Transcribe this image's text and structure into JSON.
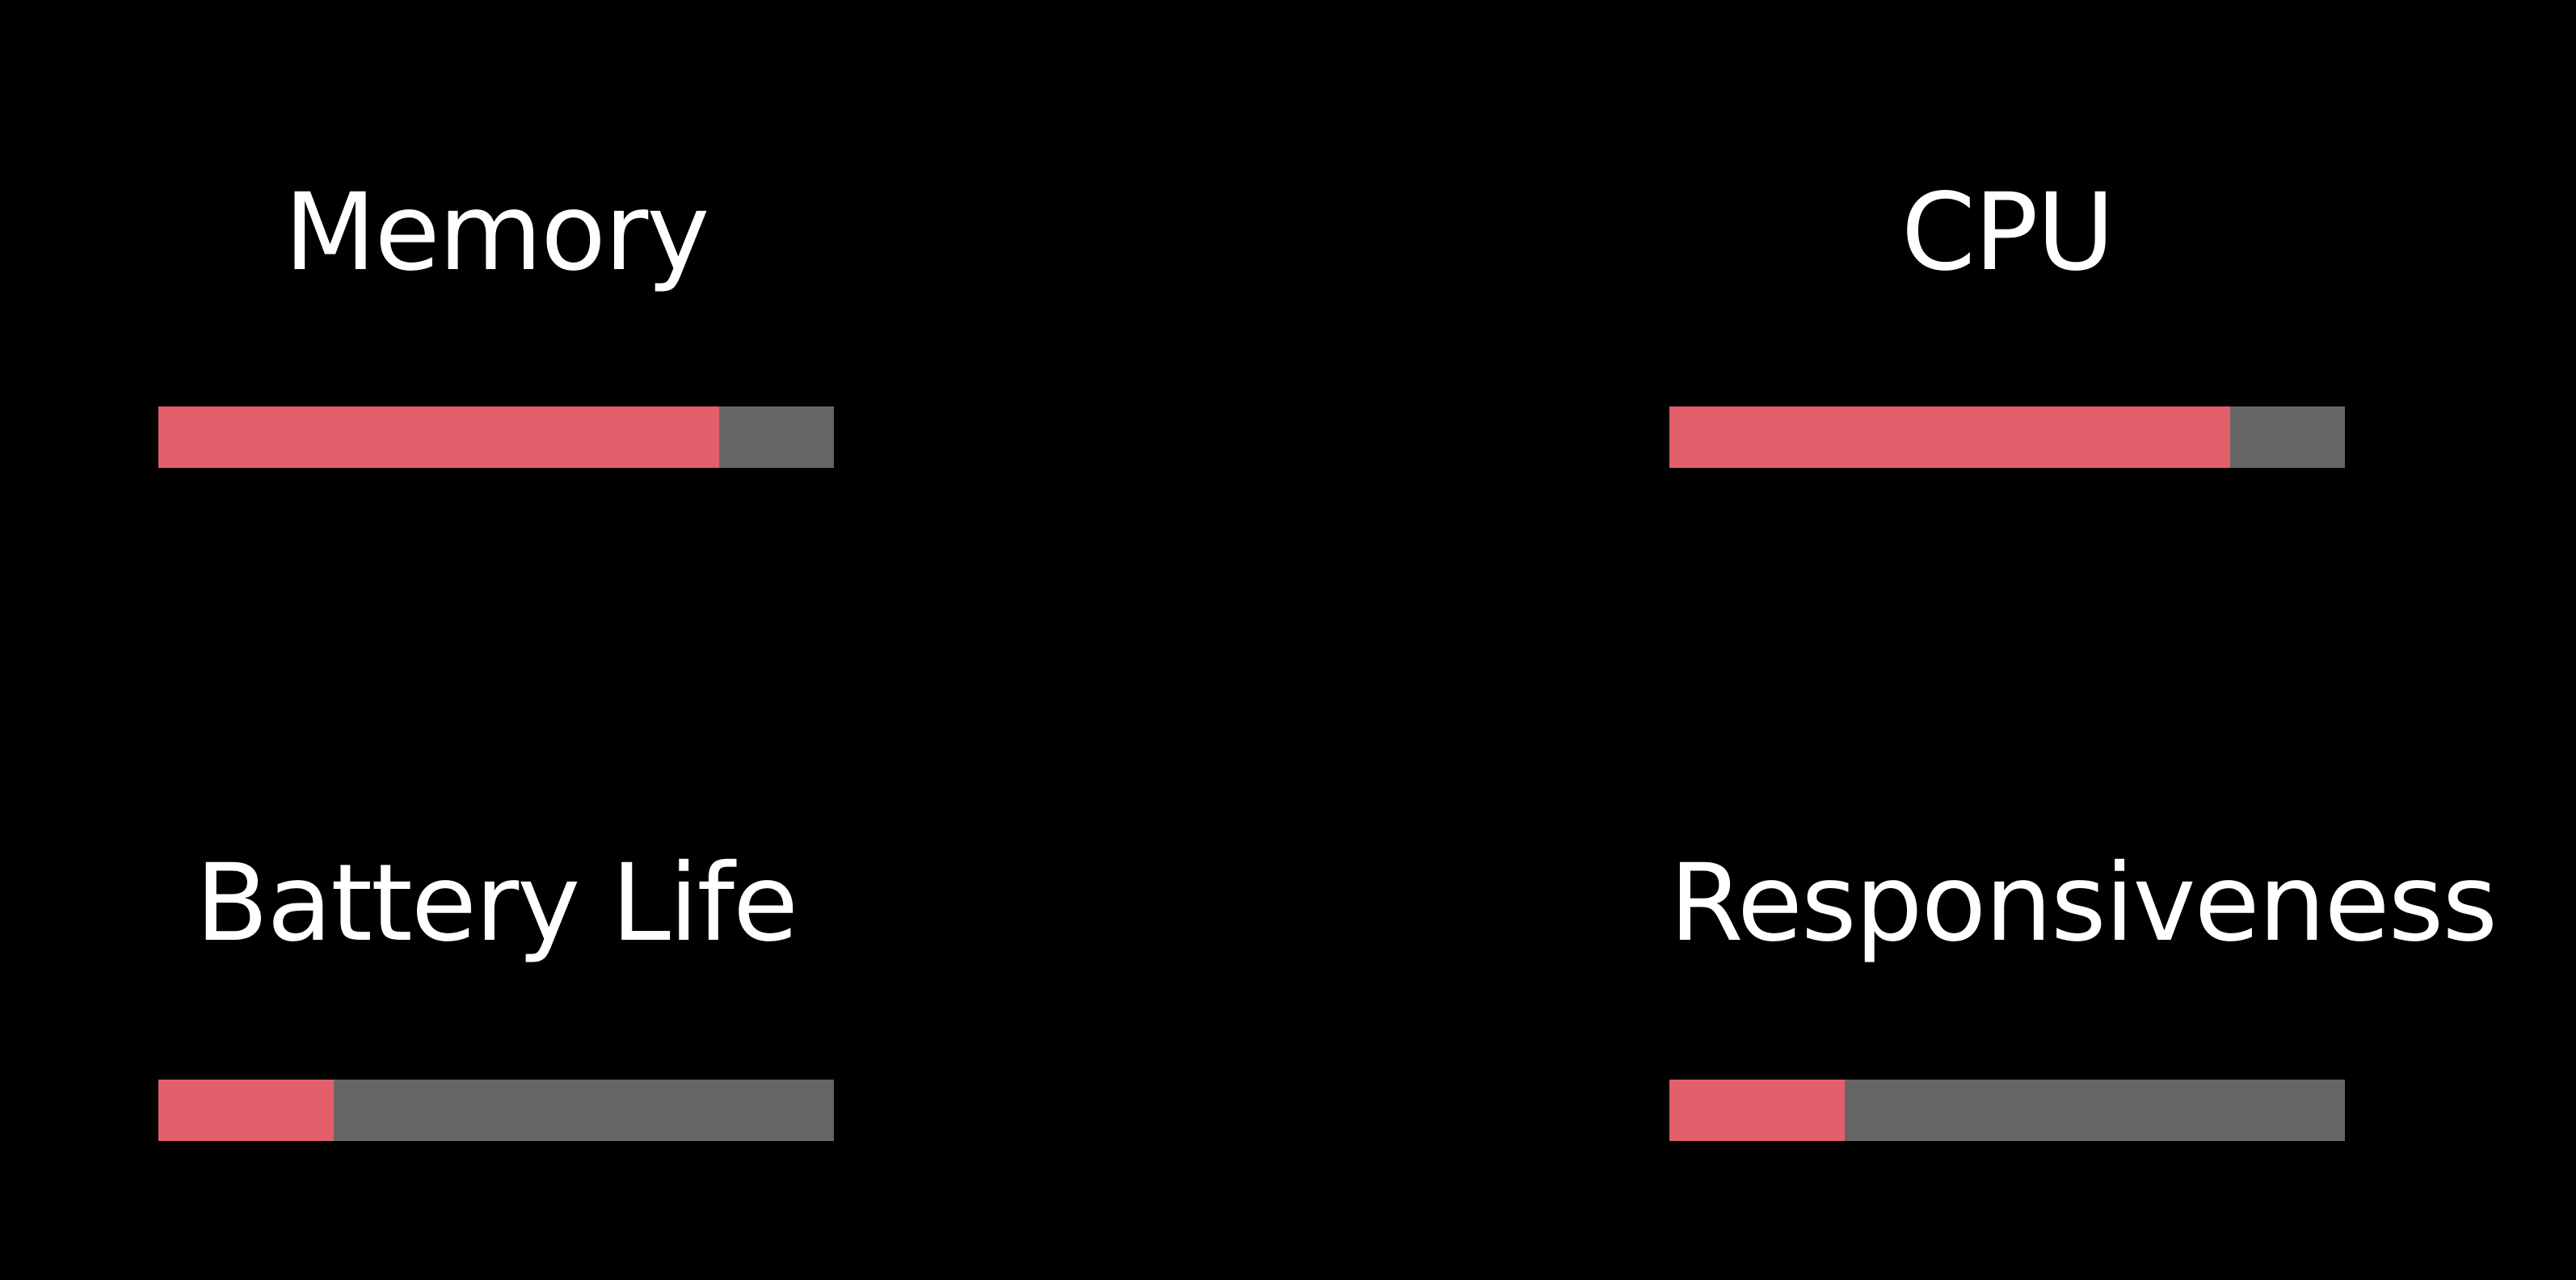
{
  "metrics": [
    {
      "title": "Memory",
      "level": 0.83
    },
    {
      "title": "CPU",
      "level": 0.83
    },
    {
      "title": "Battery Life",
      "level": 0.26
    },
    {
      "title": "Responsiveness",
      "level": 0.26
    }
  ],
  "colors": {
    "background": "#000000",
    "fill": "#e25f6b",
    "track": "#666666",
    "text": "#ffffff"
  }
}
